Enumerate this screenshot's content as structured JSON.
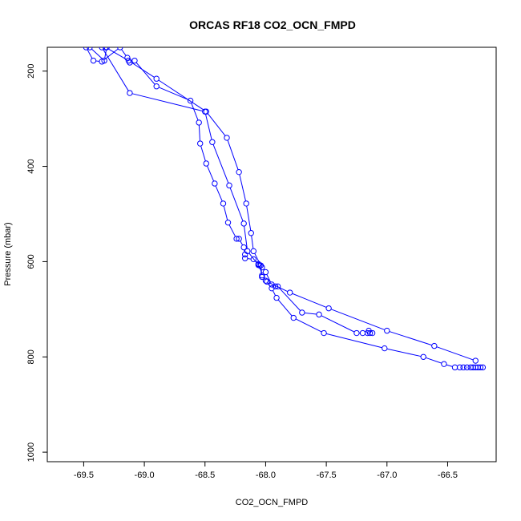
{
  "chart_data": {
    "type": "line",
    "title": "ORCAS RF18 CO2_OCN_FMPD",
    "xlabel": "CO2_OCN_FMPD",
    "ylabel": "Pressure (mbar)",
    "xlim": [
      -69.8,
      -66.1
    ],
    "ylim": [
      1020,
      150
    ],
    "y_inverted": true,
    "x_ticks": [
      -69.5,
      -69.0,
      -68.5,
      -68.0,
      -67.5,
      -67.0,
      -66.5
    ],
    "x_tick_labels": [
      "-69.5",
      "-69.0",
      "-68.5",
      "-68.0",
      "-67.5",
      "-67.0",
      "-66.5"
    ],
    "y_ticks": [
      200,
      400,
      600,
      800,
      1000
    ],
    "y_tick_labels": [
      "200",
      "400",
      "600",
      "800",
      "1000"
    ],
    "marker": "open-circle",
    "series_color": "#0000ff",
    "series": [
      {
        "points": [
          [
            -69.48,
            150
          ],
          [
            -69.42,
            178
          ],
          [
            -69.35,
            180
          ],
          [
            -69.2,
            150
          ],
          [
            -69.14,
            172
          ],
          [
            -69.12,
            182
          ],
          [
            -69.08,
            178
          ],
          [
            -68.9,
            232
          ],
          [
            -68.62,
            262
          ],
          [
            -68.55,
            308
          ],
          [
            -68.54,
            352
          ],
          [
            -68.49,
            394
          ],
          [
            -68.42,
            436
          ],
          [
            -68.35,
            478
          ],
          [
            -68.31,
            518
          ],
          [
            -68.24,
            552
          ],
          [
            -68.22,
            552
          ],
          [
            -68.18,
            570
          ],
          [
            -68.17,
            585
          ],
          [
            -68.17,
            593
          ],
          [
            -68.1,
            595
          ],
          [
            -68.06,
            605
          ],
          [
            -68.05,
            608
          ],
          [
            -68.03,
            629
          ],
          [
            -68.03,
            632
          ],
          [
            -67.99,
            642
          ],
          [
            -67.8,
            665
          ],
          [
            -67.48,
            698
          ],
          [
            -67.0,
            745
          ],
          [
            -66.61,
            777
          ],
          [
            -66.27,
            808
          ]
        ]
      },
      {
        "points": [
          [
            -66.21,
            822
          ],
          [
            -66.23,
            822
          ],
          [
            -66.25,
            822
          ],
          [
            -66.27,
            822
          ],
          [
            -66.29,
            822
          ],
          [
            -66.31,
            822
          ],
          [
            -66.34,
            822
          ],
          [
            -66.37,
            822
          ],
          [
            -66.4,
            822
          ],
          [
            -66.44,
            822
          ],
          [
            -66.53,
            815
          ],
          [
            -66.7,
            800
          ],
          [
            -67.02,
            782
          ],
          [
            -67.52,
            750
          ],
          [
            -67.77,
            718
          ],
          [
            -67.91,
            676
          ],
          [
            -67.95,
            656
          ],
          [
            -68.0,
            640
          ],
          [
            -68.03,
            632
          ],
          [
            -68.04,
            608
          ],
          [
            -68.1,
            578
          ],
          [
            -68.12,
            540
          ],
          [
            -68.16,
            478
          ],
          [
            -68.22,
            412
          ],
          [
            -68.32,
            340
          ],
          [
            -68.49,
            285
          ],
          [
            -68.9,
            216
          ],
          [
            -69.13,
            178
          ],
          [
            -69.32,
            150
          ]
        ]
      },
      {
        "points": [
          [
            -69.35,
            150
          ],
          [
            -69.12,
            246
          ],
          [
            -68.5,
            285
          ],
          [
            -68.44,
            349
          ],
          [
            -68.3,
            440
          ],
          [
            -68.18,
            520
          ],
          [
            -68.15,
            578
          ],
          [
            -68.06,
            607
          ],
          [
            -68.03,
            612
          ],
          [
            -68.0,
            622
          ],
          [
            -67.95,
            648
          ],
          [
            -67.92,
            652
          ],
          [
            -67.9,
            652
          ],
          [
            -67.7,
            707
          ],
          [
            -67.56,
            711
          ],
          [
            -67.25,
            750
          ],
          [
            -67.2,
            750
          ],
          [
            -67.16,
            750
          ],
          [
            -67.15,
            745
          ],
          [
            -67.14,
            750
          ],
          [
            -67.12,
            750
          ]
        ]
      },
      {
        "points": [
          [
            -69.45,
            150
          ],
          [
            -69.33,
            178
          ],
          [
            -69.31,
            150
          ]
        ]
      }
    ]
  }
}
